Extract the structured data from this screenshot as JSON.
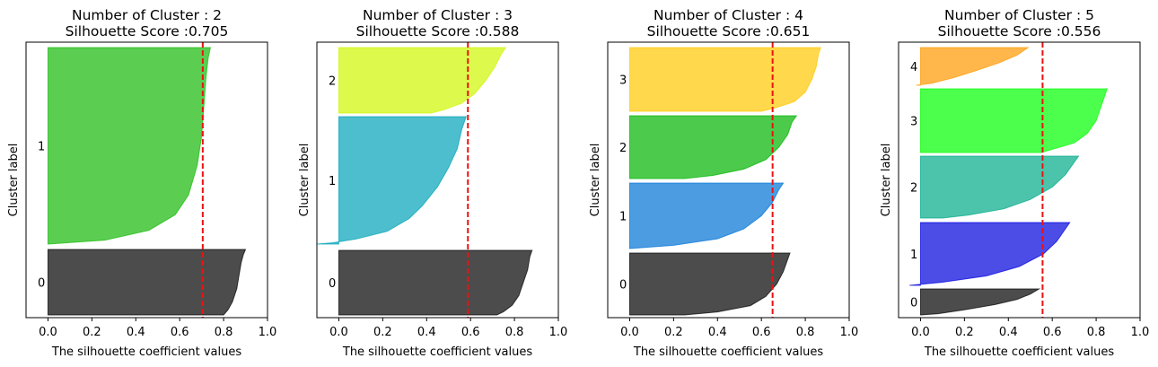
{
  "chart_data": [
    {
      "type": "silhouette",
      "title_line1": "Number of Cluster : 2",
      "title_line2": "Silhouette Score :0.705",
      "score": 0.705,
      "xlabel": "The silhouette coefficient values",
      "ylabel": "Cluster label",
      "xlim": [
        -0.1,
        1.0
      ],
      "xticks": [
        "0.0",
        "0.2",
        "0.4",
        "0.6",
        "0.8",
        "1.0"
      ],
      "xtick_values": [
        0.0,
        0.2,
        0.4,
        0.6,
        0.8,
        1.0
      ],
      "clusters": [
        {
          "label": "0",
          "color": "#000000",
          "profile": [
            [
              0,
              0.9
            ],
            [
              0.08,
              0.89
            ],
            [
              0.2,
              0.88
            ],
            [
              0.4,
              0.87
            ],
            [
              0.6,
              0.86
            ],
            [
              0.8,
              0.84
            ],
            [
              0.92,
              0.82
            ],
            [
              1,
              0.8
            ]
          ]
        },
        {
          "label": "1",
          "color": "#16b908",
          "profile": [
            [
              0,
              0.74
            ],
            [
              0.05,
              0.73
            ],
            [
              0.15,
              0.72
            ],
            [
              0.3,
              0.71
            ],
            [
              0.45,
              0.7
            ],
            [
              0.6,
              0.68
            ],
            [
              0.75,
              0.64
            ],
            [
              0.85,
              0.58
            ],
            [
              0.93,
              0.46
            ],
            [
              0.98,
              0.26
            ],
            [
              1,
              0.0
            ]
          ]
        }
      ]
    },
    {
      "type": "silhouette",
      "title_line1": "Number of Cluster : 3",
      "title_line2": "Silhouette Score :0.588",
      "score": 0.588,
      "xlabel": "The silhouette coefficient values",
      "ylabel": "Cluster label",
      "xlim": [
        -0.1,
        1.0
      ],
      "xticks": [
        "0.0",
        "0.2",
        "0.4",
        "0.6",
        "0.8",
        "1.0"
      ],
      "xtick_values": [
        0.0,
        0.2,
        0.4,
        0.6,
        0.8,
        1.0
      ],
      "clusters": [
        {
          "label": "0",
          "color": "#000000",
          "profile": [
            [
              0,
              0.88
            ],
            [
              0.1,
              0.87
            ],
            [
              0.3,
              0.86
            ],
            [
              0.5,
              0.84
            ],
            [
              0.7,
              0.82
            ],
            [
              0.85,
              0.79
            ],
            [
              0.95,
              0.75
            ],
            [
              1,
              0.72
            ]
          ]
        },
        {
          "label": "1",
          "color": "#00a2b8",
          "profile": [
            [
              0,
              0.58
            ],
            [
              0.1,
              0.56
            ],
            [
              0.25,
              0.54
            ],
            [
              0.4,
              0.5
            ],
            [
              0.55,
              0.45
            ],
            [
              0.7,
              0.38
            ],
            [
              0.8,
              0.32
            ],
            [
              0.9,
              0.22
            ],
            [
              0.96,
              0.08
            ],
            [
              0.99,
              -0.03
            ],
            [
              1,
              -0.1
            ]
          ]
        },
        {
          "label": "2",
          "color": "#cdf600",
          "profile": [
            [
              0,
              0.76
            ],
            [
              0.1,
              0.74
            ],
            [
              0.3,
              0.71
            ],
            [
              0.5,
              0.67
            ],
            [
              0.7,
              0.62
            ],
            [
              0.85,
              0.56
            ],
            [
              0.95,
              0.48
            ],
            [
              1,
              0.42
            ]
          ]
        }
      ]
    },
    {
      "type": "silhouette",
      "title_line1": "Number of Cluster : 4",
      "title_line2": "Silhouette Score :0.651",
      "score": 0.651,
      "xlabel": "The silhouette coefficient values",
      "ylabel": "Cluster label",
      "xlim": [
        -0.1,
        1.0
      ],
      "xticks": [
        "0.0",
        "0.2",
        "0.4",
        "0.6",
        "0.8",
        "1.0"
      ],
      "xtick_values": [
        0.0,
        0.2,
        0.4,
        0.6,
        0.8,
        1.0
      ],
      "clusters": [
        {
          "label": "0",
          "color": "#000000",
          "profile": [
            [
              0,
              0.73
            ],
            [
              0.1,
              0.72
            ],
            [
              0.3,
              0.7
            ],
            [
              0.5,
              0.67
            ],
            [
              0.7,
              0.62
            ],
            [
              0.85,
              0.55
            ],
            [
              0.95,
              0.4
            ],
            [
              1,
              0.25
            ]
          ]
        },
        {
          "label": "1",
          "color": "#0072d6",
          "profile": [
            [
              0,
              0.7
            ],
            [
              0.1,
              0.68
            ],
            [
              0.3,
              0.65
            ],
            [
              0.5,
              0.6
            ],
            [
              0.7,
              0.52
            ],
            [
              0.85,
              0.4
            ],
            [
              0.95,
              0.2
            ],
            [
              1,
              0.0
            ]
          ]
        },
        {
          "label": "2",
          "color": "#00b400",
          "profile": [
            [
              0,
              0.76
            ],
            [
              0.1,
              0.74
            ],
            [
              0.3,
              0.72
            ],
            [
              0.5,
              0.68
            ],
            [
              0.7,
              0.62
            ],
            [
              0.85,
              0.52
            ],
            [
              0.95,
              0.38
            ],
            [
              1,
              0.25
            ]
          ]
        },
        {
          "label": "3",
          "color": "#ffc700",
          "profile": [
            [
              0,
              0.87
            ],
            [
              0.1,
              0.86
            ],
            [
              0.3,
              0.85
            ],
            [
              0.5,
              0.83
            ],
            [
              0.7,
              0.8
            ],
            [
              0.85,
              0.75
            ],
            [
              0.95,
              0.66
            ],
            [
              1,
              0.6
            ]
          ]
        }
      ]
    },
    {
      "type": "silhouette",
      "title_line1": "Number of Cluster : 5",
      "title_line2": "Silhouette Score :0.556",
      "score": 0.556,
      "xlabel": "The silhouette coefficient values",
      "ylabel": "Cluster label",
      "xlim": [
        -0.1,
        1.0
      ],
      "xticks": [
        "0.0",
        "0.2",
        "0.4",
        "0.6",
        "0.8",
        "1.0"
      ],
      "xtick_values": [
        0.0,
        0.2,
        0.4,
        0.6,
        0.8,
        1.0
      ],
      "clusters": [
        {
          "label": "0",
          "color": "#000000",
          "profile": [
            [
              0,
              0.54
            ],
            [
              0.2,
              0.5
            ],
            [
              0.4,
              0.44
            ],
            [
              0.6,
              0.34
            ],
            [
              0.8,
              0.2
            ],
            [
              0.95,
              0.08
            ],
            [
              1,
              0.0
            ]
          ]
        },
        {
          "label": "1",
          "color": "#0000dd",
          "profile": [
            [
              0,
              0.68
            ],
            [
              0.1,
              0.66
            ],
            [
              0.3,
              0.62
            ],
            [
              0.5,
              0.56
            ],
            [
              0.7,
              0.45
            ],
            [
              0.85,
              0.3
            ],
            [
              0.95,
              0.1
            ],
            [
              1,
              -0.05
            ]
          ]
        },
        {
          "label": "2",
          "color": "#00aa88",
          "profile": [
            [
              0,
              0.72
            ],
            [
              0.1,
              0.7
            ],
            [
              0.3,
              0.66
            ],
            [
              0.5,
              0.6
            ],
            [
              0.7,
              0.5
            ],
            [
              0.85,
              0.38
            ],
            [
              0.95,
              0.22
            ],
            [
              1,
              0.1
            ]
          ]
        },
        {
          "label": "3",
          "color": "#00ff00",
          "profile": [
            [
              0,
              0.85
            ],
            [
              0.1,
              0.84
            ],
            [
              0.3,
              0.82
            ],
            [
              0.5,
              0.8
            ],
            [
              0.7,
              0.76
            ],
            [
              0.85,
              0.7
            ],
            [
              0.95,
              0.6
            ],
            [
              1,
              0.55
            ]
          ]
        },
        {
          "label": "4",
          "color": "#ff9900",
          "profile": [
            [
              0,
              0.49
            ],
            [
              0.2,
              0.44
            ],
            [
              0.4,
              0.36
            ],
            [
              0.6,
              0.26
            ],
            [
              0.8,
              0.15
            ],
            [
              0.95,
              0.05
            ],
            [
              1,
              -0.02
            ]
          ]
        }
      ]
    }
  ]
}
